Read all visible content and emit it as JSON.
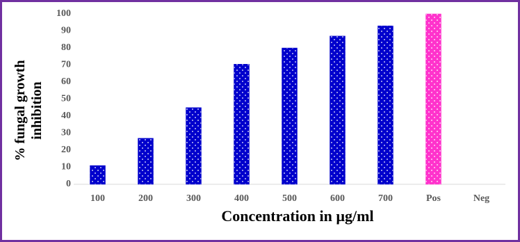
{
  "chart_data": {
    "type": "bar",
    "xlabel": "Concentration in µg/ml",
    "ylabel": "% fungal growth inhibition",
    "categories": [
      "100",
      "200",
      "300",
      "400",
      "500",
      "600",
      "700",
      "Pos",
      "Neg"
    ],
    "values": [
      11,
      27,
      45,
      70.5,
      80,
      87,
      93,
      100,
      0
    ],
    "colors": [
      "#0000cc",
      "#0000cc",
      "#0000cc",
      "#0000cc",
      "#0000cc",
      "#0000cc",
      "#0000cc",
      "#ff33cc",
      "#0000cc"
    ],
    "ylim": [
      0,
      100
    ],
    "yticks": [
      0,
      10,
      20,
      30,
      40,
      50,
      60,
      70,
      80,
      90,
      100
    ],
    "grid": false
  }
}
